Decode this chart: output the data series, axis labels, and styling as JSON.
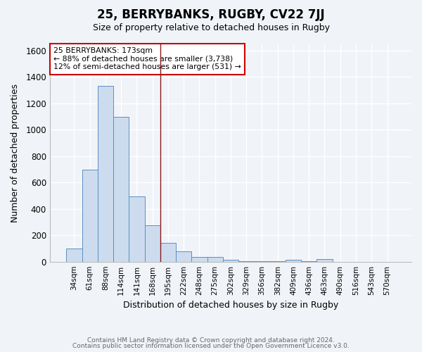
{
  "title": "25, BERRYBANKS, RUGBY, CV22 7JJ",
  "subtitle": "Size of property relative to detached houses in Rugby",
  "xlabel": "Distribution of detached houses by size in Rugby",
  "ylabel": "Number of detached properties",
  "categories": [
    "34sqm",
    "61sqm",
    "88sqm",
    "114sqm",
    "141sqm",
    "168sqm",
    "195sqm",
    "222sqm",
    "248sqm",
    "275sqm",
    "302sqm",
    "329sqm",
    "356sqm",
    "382sqm",
    "409sqm",
    "436sqm",
    "463sqm",
    "490sqm",
    "516sqm",
    "543sqm",
    "570sqm"
  ],
  "values": [
    100,
    700,
    1330,
    1100,
    495,
    275,
    145,
    78,
    35,
    35,
    12,
    5,
    5,
    5,
    12,
    5,
    20,
    0,
    0,
    0,
    0
  ],
  "bar_color": "#ccdcee",
  "bar_edge_color": "#5b8fc4",
  "property_line_x": 5.5,
  "property_line_color": "#8b1a1a",
  "annotation_text": "25 BERRYBANKS: 173sqm\n← 88% of detached houses are smaller (3,738)\n12% of semi-detached houses are larger (531) →",
  "annotation_box_color": "#ffffff",
  "annotation_box_edge": "#cc0000",
  "ylim": [
    0,
    1650
  ],
  "yticks": [
    0,
    200,
    400,
    600,
    800,
    1000,
    1200,
    1400,
    1600
  ],
  "footer_line1": "Contains HM Land Registry data © Crown copyright and database right 2024.",
  "footer_line2": "Contains public sector information licensed under the Open Government Licence v3.0.",
  "bg_color": "#f0f4f8",
  "plot_bg_color": "#f0f4f8",
  "grid_color": "#ffffff",
  "title_fontsize": 12,
  "subtitle_fontsize": 9
}
